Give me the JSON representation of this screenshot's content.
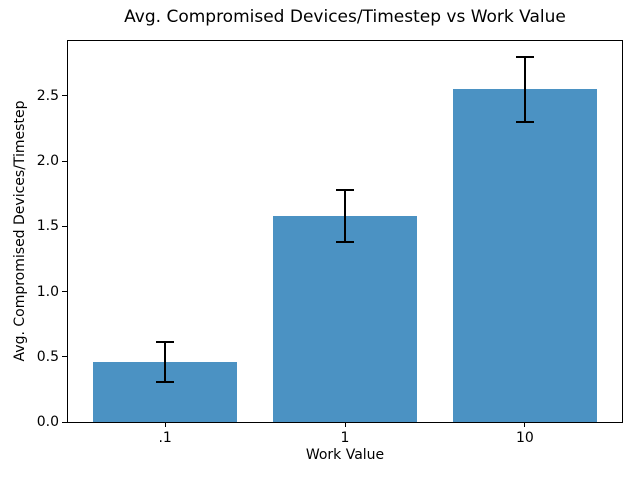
{
  "chart_data": {
    "type": "bar",
    "title": "Avg. Compromised Devices/Timestep vs Work Value",
    "xlabel": "Work Value",
    "ylabel": "Avg. Compromised Devices/Timestep",
    "categories": [
      ".1",
      "1",
      "10"
    ],
    "values": [
      0.46,
      1.58,
      2.55
    ],
    "error_bars": [
      0.15,
      0.2,
      0.25
    ],
    "yticks": [
      0.0,
      0.5,
      1.0,
      1.5,
      2.0,
      2.5
    ],
    "ytick_labels": [
      "0.0",
      "0.5",
      "1.0",
      "1.5",
      "2.0",
      "2.5"
    ],
    "ylim": [
      0,
      2.92
    ],
    "xlim": [
      -0.54,
      2.54
    ],
    "bar_width": 0.8,
    "bar_color": "#4b92c3",
    "error_color": "#000000",
    "error_capsize_px": 18,
    "error_thickness_px": 2,
    "grid": false,
    "legend": null,
    "background_color": "#ffffff",
    "text_color": "#000000"
  }
}
